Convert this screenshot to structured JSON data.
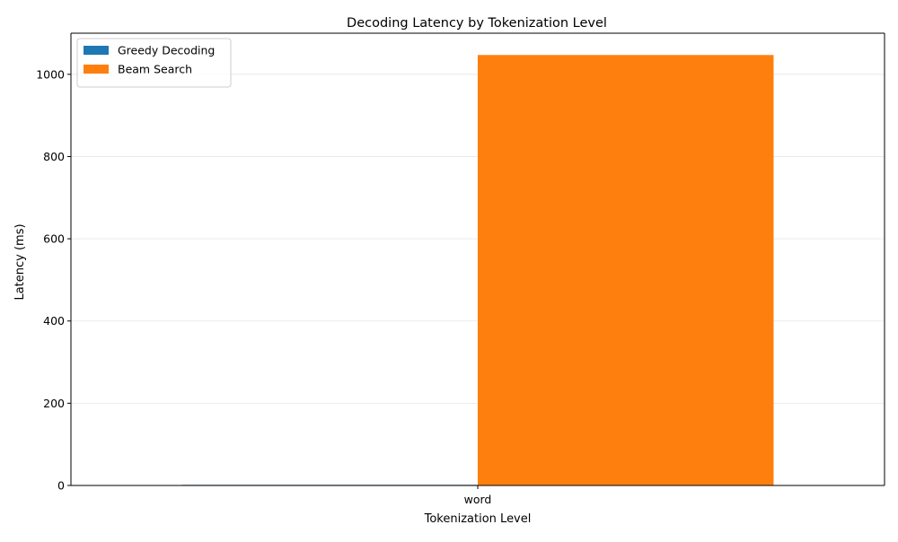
{
  "chart_data": {
    "type": "bar",
    "title": "Decoding Latency by Tokenization Level",
    "xlabel": "Tokenization Level",
    "ylabel": "Latency (ms)",
    "categories": [
      "word"
    ],
    "series": [
      {
        "name": "Greedy Decoding",
        "values": [
          1.5
        ],
        "color": "#1f77b4"
      },
      {
        "name": "Beam Search",
        "values": [
          1047
        ],
        "color": "#ff7f0e"
      }
    ],
    "ylim": [
      0,
      1100
    ],
    "yticks": [
      0,
      200,
      400,
      600,
      800,
      1000
    ],
    "grid": "y",
    "legend_position": "top-left"
  }
}
